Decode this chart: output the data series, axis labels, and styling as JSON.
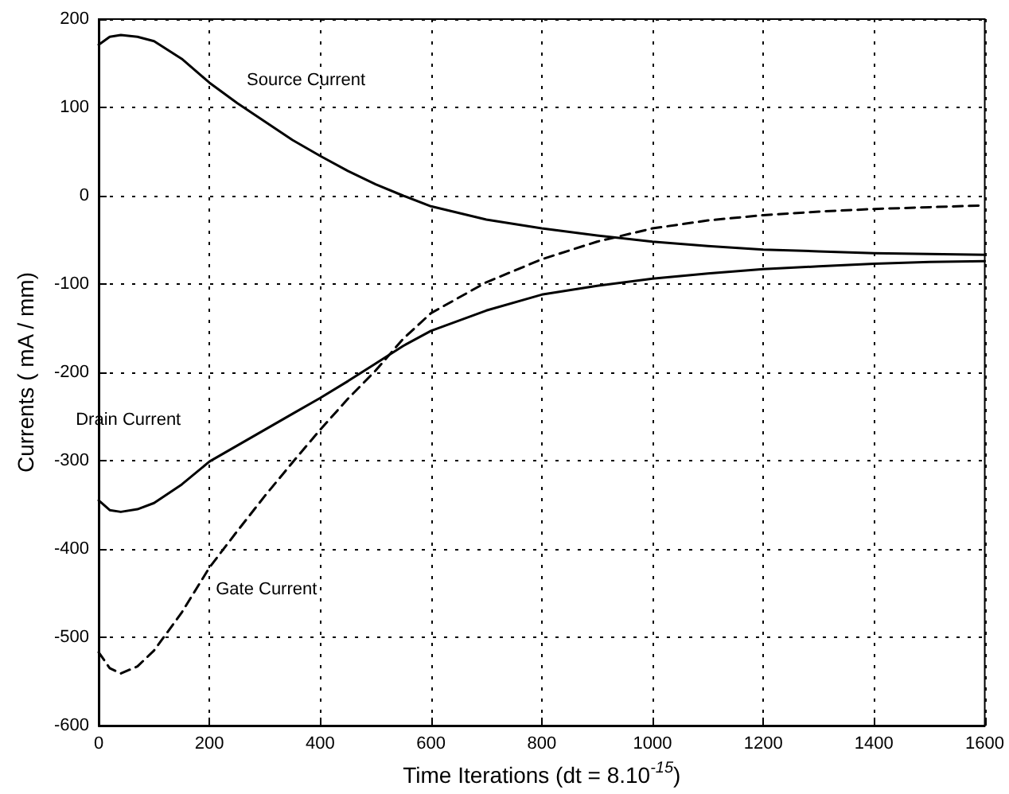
{
  "chart_data": {
    "type": "line",
    "xlabel": "Time Iterations (dt = 8.10$^{-15}$)",
    "ylabel": "Currents ( mA / mm)",
    "x": [
      0,
      20,
      40,
      70,
      100,
      150,
      200,
      250,
      300,
      350,
      400,
      450,
      500,
      550,
      600,
      700,
      800,
      900,
      1000,
      1100,
      1200,
      1300,
      1400,
      1500,
      1600
    ],
    "series": [
      {
        "name": "Source Current",
        "color": "#000000",
        "line_style": "solid",
        "values": [
          171,
          180,
          182,
          180,
          175,
          155,
          128,
          105,
          84,
          63,
          45,
          28,
          13,
          0,
          -12,
          -27,
          -37,
          -45,
          -52,
          -57,
          -61,
          -63,
          -65,
          -66,
          -67
        ]
      },
      {
        "name": "Drain Current",
        "color": "#000000",
        "line_style": "solid",
        "values": [
          -345,
          -356,
          -358,
          -355,
          -348,
          -327,
          -301,
          -283,
          -265,
          -247,
          -229,
          -210,
          -190,
          -170,
          -153,
          -130,
          -112,
          -102,
          -94,
          -88,
          -83,
          -80,
          -77,
          -75,
          -74
        ]
      },
      {
        "name": "Gate Current",
        "color": "#000000",
        "line_style": "dashed",
        "values": [
          -517,
          -535,
          -541,
          -533,
          -515,
          -472,
          -421,
          -380,
          -340,
          -302,
          -265,
          -230,
          -198,
          -162,
          -133,
          -98,
          -72,
          -52,
          -37,
          -28,
          -22,
          -18,
          -15,
          -13,
          -11
        ]
      }
    ],
    "xlim": [
      0,
      1600
    ],
    "xticks": [
      0,
      200,
      400,
      600,
      800,
      1000,
      1200,
      1400,
      1600
    ],
    "ylim": [
      -600,
      200
    ],
    "yticks": [
      -600,
      -500,
      -400,
      -300,
      -200,
      -100,
      0,
      100,
      200
    ],
    "grid": true,
    "legend": false,
    "marker": "none"
  }
}
